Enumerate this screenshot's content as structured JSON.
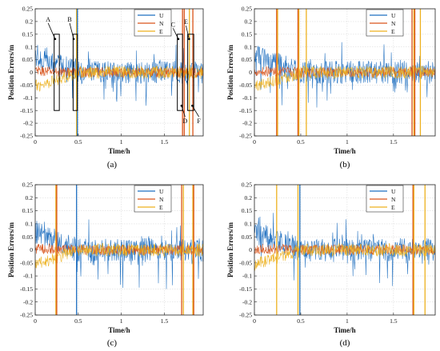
{
  "figure": {
    "panel_labels": [
      "(a)",
      "(b)",
      "(c)",
      "(d)"
    ],
    "colors": {
      "U": "#1f6fc0",
      "N": "#d9531a",
      "E": "#edb11f",
      "extra": "#7e2f8e",
      "extra2": "#77ac30"
    }
  },
  "chart_data": [
    {
      "type": "line",
      "panel": "(a)",
      "xlabel": "Time/h",
      "ylabel": "Position Errors/m",
      "xlim": [
        0,
        1.95
      ],
      "ylim": [
        -0.25,
        0.25
      ],
      "xticks": [
        "0",
        "0.5",
        "1",
        "1.5"
      ],
      "yticks": [
        "0.25",
        "0.2",
        "0.15",
        "0.1",
        "0.05",
        "0",
        "-0.05",
        "-0.1",
        "-0.15",
        "-0.2",
        "-0.25"
      ],
      "grid": true,
      "legend": {
        "placement": "top-right",
        "entries": [
          "U",
          "N",
          "E"
        ]
      },
      "series": [
        {
          "name": "U",
          "base_start": 0.07,
          "base_end": 0.0,
          "noise": 0.045
        },
        {
          "name": "N",
          "base_start": 0.005,
          "base_end": 0.0,
          "noise": 0.02
        },
        {
          "name": "E",
          "base_start": -0.055,
          "base_end": 0.0,
          "noise": 0.025
        }
      ],
      "spikes": [
        {
          "series": "E",
          "x": 0.48
        },
        {
          "series": "U",
          "x": 0.49
        },
        {
          "series": "N",
          "x": 1.71
        },
        {
          "series": "N",
          "x": 1.73
        },
        {
          "series": "E",
          "x": 1.79
        },
        {
          "series": "N",
          "x": 1.83
        }
      ],
      "annotations": [
        {
          "label": "A",
          "box_x": [
            0.22,
            0.28
          ],
          "box_y": [
            -0.15,
            0.15
          ],
          "label_x": 0.15,
          "label_y": 0.2
        },
        {
          "label": "B",
          "box_x": [
            0.44,
            0.49
          ],
          "box_y": [
            -0.15,
            0.15
          ],
          "label_x": 0.4,
          "label_y": 0.2
        },
        {
          "label": "C",
          "box_x": [
            1.65,
            1.71
          ],
          "box_y": [
            -0.15,
            0.15
          ],
          "label_x": 1.6,
          "label_y": 0.18
        },
        {
          "label": "D",
          "box_x": [
            1.65,
            1.71
          ],
          "box_y": [
            -0.15,
            0.15
          ],
          "label_x": 1.74,
          "label_y": -0.2
        },
        {
          "label": "E",
          "box_x": [
            1.77,
            1.84
          ],
          "box_y": [
            -0.15,
            0.15
          ],
          "label_x": 1.75,
          "label_y": 0.19
        },
        {
          "label": "F",
          "box_x": [
            1.77,
            1.84
          ],
          "box_y": [
            -0.15,
            0.15
          ],
          "label_x": 1.9,
          "label_y": -0.2
        }
      ]
    },
    {
      "type": "line",
      "panel": "(b)",
      "xlabel": "Time/h",
      "ylabel": "Position Errors/m",
      "xlim": [
        0,
        1.95
      ],
      "ylim": [
        -0.25,
        0.25
      ],
      "xticks": [
        "0",
        "0.5",
        "1",
        "1.5"
      ],
      "yticks": [
        "0.25",
        "0.2",
        "0.15",
        "0.1",
        "0.05",
        "0",
        "-0.05",
        "-0.1",
        "-0.15",
        "-0.2",
        "-0.25"
      ],
      "grid": true,
      "legend": {
        "placement": "top-right",
        "entries": [
          "U",
          "N",
          "E"
        ]
      },
      "series": [
        {
          "name": "U",
          "base_start": 0.07,
          "base_end": 0.0,
          "noise": 0.045
        },
        {
          "name": "N",
          "base_start": 0.005,
          "base_end": 0.0,
          "noise": 0.02
        },
        {
          "name": "E",
          "base_start": -0.055,
          "base_end": 0.0,
          "noise": 0.025
        }
      ],
      "spikes": [
        {
          "series": "N",
          "x": 0.24
        },
        {
          "series": "E",
          "x": 0.25
        },
        {
          "series": "N",
          "x": 0.47
        },
        {
          "series": "E",
          "x": 0.48
        },
        {
          "series": "E",
          "x": 0.56
        },
        {
          "series": "N",
          "x": 1.7
        },
        {
          "series": "E",
          "x": 1.72
        },
        {
          "series": "N",
          "x": 1.73
        },
        {
          "series": "E",
          "x": 1.79
        }
      ],
      "annotations": []
    },
    {
      "type": "line",
      "panel": "(c)",
      "xlabel": "Time/h",
      "ylabel": "Position Errors/m",
      "xlim": [
        0,
        1.95
      ],
      "ylim": [
        -0.25,
        0.25
      ],
      "xticks": [
        "0",
        "0.5",
        "1",
        "1.5"
      ],
      "yticks": [
        "0.25",
        "0.2",
        "0.15",
        "0.1",
        "0.05",
        "0",
        "-0.05",
        "-0.1",
        "-0.15",
        "-0.2",
        "-0.25"
      ],
      "grid": true,
      "legend": {
        "placement": "top-right",
        "entries": [
          "U",
          "N",
          "E"
        ]
      },
      "series": [
        {
          "name": "U",
          "base_start": 0.07,
          "base_end": 0.0,
          "noise": 0.045
        },
        {
          "name": "N",
          "base_start": 0.005,
          "base_end": 0.0,
          "noise": 0.02
        },
        {
          "name": "E",
          "base_start": -0.055,
          "base_end": 0.0,
          "noise": 0.025
        }
      ],
      "spikes": [
        {
          "series": "E",
          "x": 0.24
        },
        {
          "series": "N",
          "x": 0.25
        },
        {
          "series": "U",
          "x": 0.48
        },
        {
          "series": "N",
          "x": 1.7
        },
        {
          "series": "E",
          "x": 1.72
        },
        {
          "series": "E",
          "x": 1.83
        },
        {
          "series": "N",
          "x": 1.84
        }
      ],
      "annotations": []
    },
    {
      "type": "line",
      "panel": "(d)",
      "xlabel": "Time/h",
      "ylabel": "Position Errors/m",
      "xlim": [
        0,
        1.95
      ],
      "ylim": [
        -0.25,
        0.25
      ],
      "xticks": [
        "0",
        "0.5",
        "1",
        "1.5"
      ],
      "yticks": [
        "0.25",
        "0.2",
        "0.15",
        "0.1",
        "0.05",
        "0",
        "-0.05",
        "-0.1",
        "-0.15",
        "-0.2",
        "-0.25"
      ],
      "grid": true,
      "legend": {
        "placement": "top-right",
        "entries": [
          "U",
          "N",
          "E"
        ]
      },
      "series": [
        {
          "name": "U",
          "base_start": 0.07,
          "base_end": 0.0,
          "noise": 0.045
        },
        {
          "name": "N",
          "base_start": 0.005,
          "base_end": 0.0,
          "noise": 0.02
        },
        {
          "name": "E",
          "base_start": -0.055,
          "base_end": 0.0,
          "noise": 0.025
        }
      ],
      "spikes": [
        {
          "series": "E",
          "x": 0.24
        },
        {
          "series": "E",
          "x": 0.47
        },
        {
          "series": "U",
          "x": 0.49
        },
        {
          "series": "N",
          "x": 1.71
        },
        {
          "series": "E",
          "x": 1.72
        },
        {
          "series": "E",
          "x": 1.84
        }
      ],
      "annotations": []
    }
  ]
}
